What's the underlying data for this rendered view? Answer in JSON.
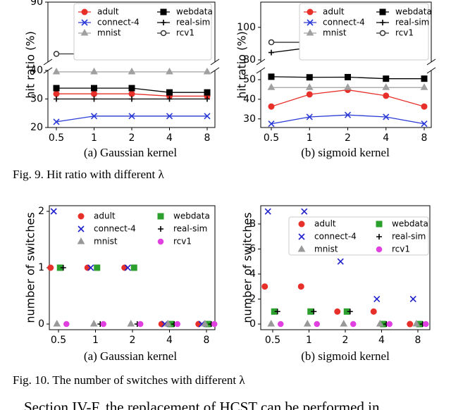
{
  "chart_data": [
    {
      "type": "line",
      "caption": "(a) Gaussian kernel",
      "ylabel": "hit ratio (%)",
      "categories": [
        "0.5",
        "1",
        "2",
        "4",
        "8"
      ],
      "ylim": [
        20,
        40
      ],
      "yticks": [
        20,
        30,
        40
      ],
      "upper_ylim": [
        70,
        90
      ],
      "upper_yticks": [
        90
      ],
      "legend_frame": true,
      "series": [
        {
          "name": "adult",
          "color": "#e8302a",
          "marker": "circle",
          "values": [
            31.8,
            31.8,
            31.8,
            31,
            31
          ]
        },
        {
          "name": "webdata",
          "color": "#000000",
          "marker": "square",
          "values": [
            33.8,
            33.8,
            33.8,
            32.3,
            32.3
          ]
        },
        {
          "name": "connect-4",
          "color": "#2a3ad6",
          "marker": "x",
          "values": [
            22,
            24,
            24,
            24,
            24
          ]
        },
        {
          "name": "real-sim",
          "color": "#000000",
          "marker": "plus",
          "values": [
            30,
            30,
            30,
            30,
            30
          ]
        },
        {
          "name": "mnist",
          "color": "#a0a0a0",
          "marker": "triangle",
          "values": [
            39.5,
            39.5,
            39.5,
            39.5,
            39.5
          ]
        },
        {
          "name": "rcv1",
          "color": "#333333",
          "marker": "dotcircle",
          "values": [
            72.7,
            72.7,
            72.7,
            72.7,
            72.7
          ]
        }
      ]
    },
    {
      "type": "line",
      "caption": "(b) sigmoid kernel",
      "ylabel": "hit ratio (%)",
      "categories": [
        "0.5",
        "1",
        "2",
        "4",
        "8"
      ],
      "ylim": [
        25.6,
        54.7
      ],
      "yticks": [
        30,
        40,
        50
      ],
      "upper_ylim": [
        78.7,
        115.5
      ],
      "upper_yticks": [
        80,
        100
      ],
      "legend_frame": true,
      "series": [
        {
          "name": "adult",
          "color": "#e8302a",
          "marker": "circle",
          "values": [
            36.3,
            42.5,
            44.8,
            41.8,
            36.3
          ]
        },
        {
          "name": "webdata",
          "color": "#000000",
          "marker": "square",
          "values": [
            51.5,
            51.2,
            51.3,
            50.5,
            50.5
          ]
        },
        {
          "name": "connect-4",
          "color": "#2a3ad6",
          "marker": "x",
          "values": [
            27.5,
            31,
            32,
            31,
            27.5
          ]
        },
        {
          "name": "real-sim",
          "color": "#000000",
          "marker": "plus",
          "values": [
            84.5,
            87.5,
            87.2,
            84.5,
            84.5
          ]
        },
        {
          "name": "mnist",
          "color": "#a0a0a0",
          "marker": "triangle",
          "values": [
            46,
            46,
            46,
            46,
            46
          ]
        },
        {
          "name": "rcv1",
          "color": "#333333",
          "marker": "dotcircle",
          "values": [
            90.8,
            90.8,
            90.8,
            90.8,
            90.8
          ]
        }
      ]
    },
    {
      "type": "scatter",
      "caption": "(a) Gaussian kernel",
      "ylabel": "number of switches",
      "categories": [
        "0.5",
        "1",
        "2",
        "4",
        "8"
      ],
      "ylim": [
        -0.1,
        2.1
      ],
      "yticks": [
        0,
        1,
        2
      ],
      "legend_frame": false,
      "series": [
        {
          "name": "adult",
          "color": "#e8302a",
          "marker": "circle",
          "values": [
            1,
            1,
            1,
            0,
            0
          ]
        },
        {
          "name": "webdata",
          "color": "#2ca02c",
          "marker": "square",
          "values": [
            1,
            1,
            1,
            0,
            0
          ]
        },
        {
          "name": "connect-4",
          "color": "#2020cc",
          "marker": "x",
          "values": [
            2,
            1,
            1,
            0,
            0
          ]
        },
        {
          "name": "real-sim",
          "color": "#000000",
          "marker": "plus",
          "values": [
            1,
            0,
            0,
            0,
            0
          ]
        },
        {
          "name": "mnist",
          "color": "#999999",
          "marker": "triangle",
          "values": [
            0,
            0,
            0,
            0,
            0
          ]
        },
        {
          "name": "rcv1",
          "color": "#e040e0",
          "marker": "dotcircle",
          "values": [
            0,
            0,
            0,
            0,
            0
          ]
        }
      ]
    },
    {
      "type": "scatter",
      "caption": "(b) sigmoid kernel",
      "ylabel": "number of switches",
      "categories": [
        "0.5",
        "1",
        "2",
        "4",
        "8"
      ],
      "ylim": [
        -0.45,
        9.46
      ],
      "yticks": [
        0,
        2,
        4,
        6,
        8
      ],
      "legend_frame": true,
      "series": [
        {
          "name": "adult",
          "color": "#e8302a",
          "marker": "circle",
          "values": [
            3,
            3,
            1,
            1,
            0
          ]
        },
        {
          "name": "webdata",
          "color": "#2ca02c",
          "marker": "square",
          "values": [
            1,
            1,
            1,
            0,
            0
          ]
        },
        {
          "name": "connect-4",
          "color": "#2020cc",
          "marker": "x",
          "values": [
            9,
            9,
            5,
            2,
            2
          ]
        },
        {
          "name": "real-sim",
          "color": "#000000",
          "marker": "plus",
          "values": [
            1,
            1,
            1,
            0,
            0
          ]
        },
        {
          "name": "mnist",
          "color": "#999999",
          "marker": "triangle",
          "values": [
            0,
            0,
            0,
            0,
            0
          ]
        },
        {
          "name": "rcv1",
          "color": "#e040e0",
          "marker": "dotcircle",
          "values": [
            0,
            0,
            0,
            0,
            0
          ]
        }
      ]
    }
  ],
  "figure_captions": [
    "Fig. 9.  Hit ratio with different λ",
    "Fig. 10.  The number of switches with different λ"
  ],
  "body_text": "Section IV-F, the replacement of HCST can be performed in"
}
